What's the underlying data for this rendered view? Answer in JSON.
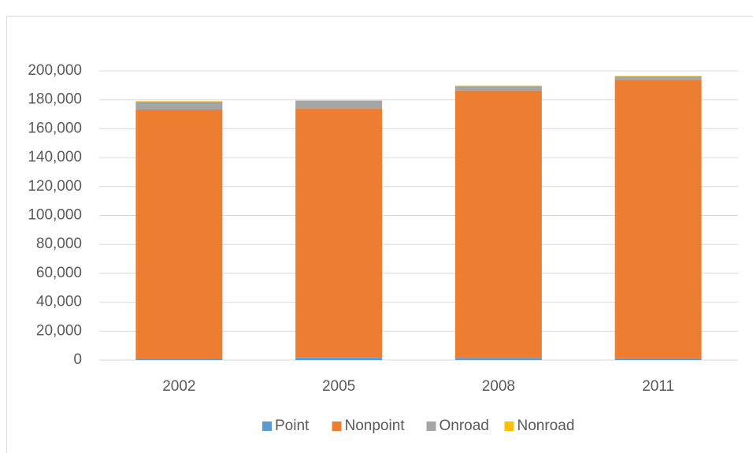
{
  "chart_data": {
    "type": "stacked_bar",
    "categories": [
      "2002",
      "2005",
      "2008",
      "2011"
    ],
    "series": [
      {
        "name": "Point",
        "color": "#5b9bd5",
        "values": [
          800,
          1800,
          1500,
          1200
        ]
      },
      {
        "name": "Nonpoint",
        "color": "#ed7d31",
        "values": [
          172500,
          172000,
          185000,
          192500
        ]
      },
      {
        "name": "Onroad",
        "color": "#a5a5a5",
        "values": [
          5500,
          5500,
          3000,
          2500
        ]
      },
      {
        "name": "Nonroad",
        "color": "#ffc000",
        "values": [
          300,
          300,
          300,
          300
        ]
      }
    ],
    "ylim": [
      0,
      200000
    ],
    "yticks": [
      0,
      {
        "value": 20000,
        "label": "20,000"
      },
      {
        "value": 40000,
        "label": "40,000"
      },
      {
        "value": 60000,
        "label": "60,000"
      },
      {
        "value": 80000,
        "label": "80,000"
      },
      {
        "value": 100000,
        "label": "100,000"
      },
      {
        "value": 120000,
        "label": "120,000"
      },
      {
        "value": 140000,
        "label": "140,000"
      },
      {
        "value": 160000,
        "label": "160,000"
      },
      {
        "value": 180000,
        "label": "180,000"
      },
      {
        "value": 200000,
        "label": "200,000"
      }
    ],
    "grid": true,
    "legend": "bottom"
  }
}
